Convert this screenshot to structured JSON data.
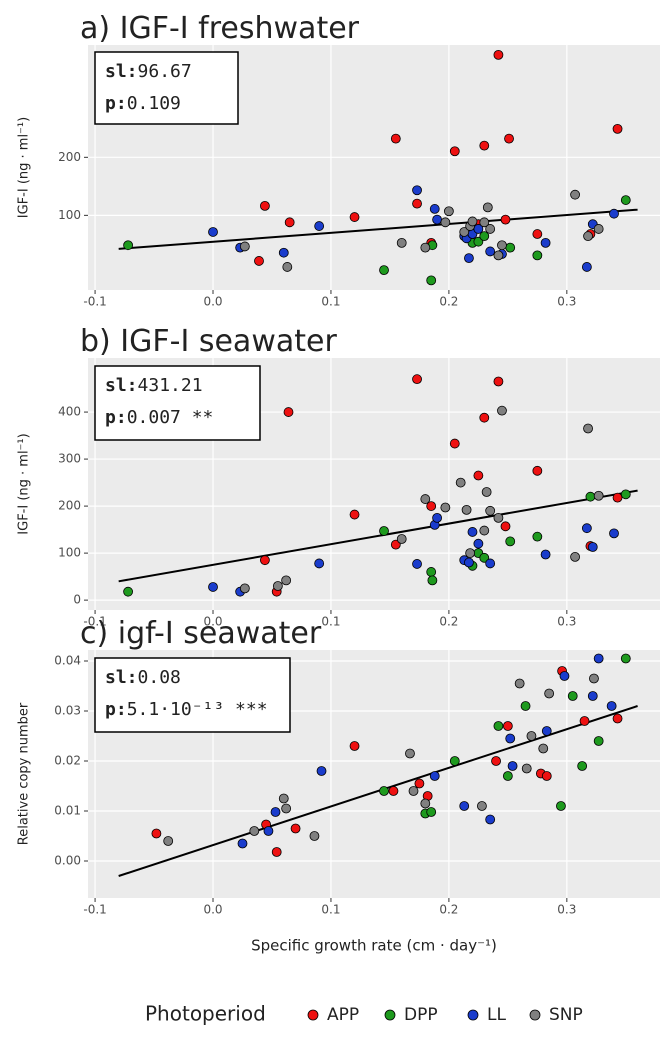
{
  "legend_title": "Photoperiod",
  "chart_data": [
    {
      "type": "scatter",
      "title": "a) IGF-I freshwater",
      "y_label": "IGF-I (ng · ml⁻¹)",
      "annotation": [
        "sl:96.67",
        "p:0.109"
      ],
      "log_y": true,
      "xlim": [
        -0.106,
        0.379
      ],
      "xticks": [
        -0.1,
        {
          "value": 0,
          "label": "0.0"
        },
        0.1,
        0.2,
        0.3
      ],
      "ylim": [
        41,
        765
      ],
      "yticks": [
        100,
        200
      ],
      "series": [
        {
          "name": "APP",
          "color": "#ee1111",
          "x": [
            0.044,
            0.039,
            0.065,
            0.12,
            0.155,
            0.173,
            0.185,
            0.205,
            0.225,
            0.23,
            0.242,
            0.248,
            0.251,
            0.275,
            0.32,
            0.343
          ],
          "y": [
            112,
            58,
            92,
            98,
            250,
            115,
            72,
            215,
            90,
            230,
            680,
            95,
            250,
            80,
            80,
            281
          ]
        },
        {
          "name": "DPP",
          "color": "#1e9a1e",
          "x": [
            -0.072,
            0.145,
            0.185,
            0.186,
            0.22,
            0.225,
            0.23,
            0.252,
            0.275,
            0.35
          ],
          "y": [
            70,
            52,
            46,
            70,
            72,
            73,
            78,
            68,
            62,
            120
          ]
        },
        {
          "name": "LL",
          "color": "#1a3ccc",
          "x": [
            0.0,
            0.023,
            0.06,
            0.09,
            0.173,
            0.188,
            0.19,
            0.213,
            0.215,
            0.217,
            0.22,
            0.225,
            0.235,
            0.245,
            0.282,
            0.317,
            0.34,
            0.322
          ],
          "y": [
            82,
            68,
            64,
            88,
            135,
            108,
            95,
            78,
            76,
            60,
            80,
            85,
            65,
            63,
            72,
            54,
            102,
            90
          ]
        },
        {
          "name": "SNP",
          "color": "#808080",
          "x": [
            0.027,
            0.063,
            0.16,
            0.18,
            0.197,
            0.2,
            0.213,
            0.218,
            0.22,
            0.23,
            0.233,
            0.235,
            0.242,
            0.245,
            0.307,
            0.318,
            0.327
          ],
          "y": [
            69,
            54,
            72,
            68,
            92,
            105,
            82,
            88,
            93,
            92,
            110,
            85,
            62,
            70,
            128,
            78,
            85
          ]
        }
      ],
      "fit": {
        "x": [
          -0.08,
          0.36
        ],
        "y": [
          67,
          107
        ]
      }
    },
    {
      "type": "scatter",
      "title": "b) IGF-I seawater",
      "y_label": "IGF-I (ng · ml⁻¹)",
      "annotation": [
        "sl:431.21",
        "p:0.007 **"
      ],
      "log_y": false,
      "xlim": [
        -0.106,
        0.379
      ],
      "xticks": [
        -0.1,
        {
          "value": 0,
          "label": "0.0"
        },
        0.1,
        0.2,
        0.3
      ],
      "ylim": [
        -21,
        515
      ],
      "yticks": [
        0,
        100,
        200,
        300,
        400
      ],
      "series": [
        {
          "name": "APP",
          "color": "#ee1111",
          "x": [
            0.044,
            0.064,
            0.054,
            0.12,
            0.155,
            0.173,
            0.185,
            0.205,
            0.225,
            0.23,
            0.242,
            0.248,
            0.275,
            0.32,
            0.343
          ],
          "y": [
            85,
            400,
            18,
            182,
            118,
            470,
            200,
            333,
            265,
            388,
            465,
            157,
            275,
            115,
            218
          ]
        },
        {
          "name": "DPP",
          "color": "#1e9a1e",
          "x": [
            -0.072,
            0.145,
            0.185,
            0.186,
            0.22,
            0.225,
            0.23,
            0.252,
            0.275,
            0.32,
            0.35
          ],
          "y": [
            18,
            147,
            60,
            42,
            73,
            100,
            90,
            125,
            135,
            220,
            225
          ]
        },
        {
          "name": "LL",
          "color": "#1a3ccc",
          "x": [
            0.0,
            0.023,
            0.09,
            0.173,
            0.188,
            0.19,
            0.213,
            0.217,
            0.22,
            0.225,
            0.235,
            0.282,
            0.317,
            0.322,
            0.34
          ],
          "y": [
            28,
            18,
            78,
            77,
            160,
            175,
            85,
            80,
            145,
            120,
            78,
            97,
            153,
            113,
            142
          ]
        },
        {
          "name": "SNP",
          "color": "#808080",
          "x": [
            0.027,
            0.055,
            0.062,
            0.16,
            0.18,
            0.197,
            0.21,
            0.215,
            0.218,
            0.23,
            0.232,
            0.235,
            0.242,
            0.245,
            0.307,
            0.318,
            0.327
          ],
          "y": [
            25,
            30,
            42,
            130,
            215,
            197,
            250,
            192,
            100,
            148,
            230,
            190,
            175,
            403,
            92,
            365,
            222
          ]
        }
      ],
      "fit": {
        "x": [
          -0.08,
          0.36
        ],
        "y": [
          40,
          233
        ]
      }
    },
    {
      "type": "scatter",
      "title": "c) igf-I seawater",
      "y_label": "Relative copy number",
      "annotation": [
        "sl:0.08",
        "p:5.1·10⁻¹³ ***"
      ],
      "x_label": "Specific growth rate (cm · day⁻¹)",
      "log_y": false,
      "xlim": [
        -0.106,
        0.379
      ],
      "xticks": [
        -0.1,
        {
          "value": 0,
          "label": "0.0"
        },
        0.1,
        0.2,
        0.3
      ],
      "ylim": [
        -0.0074,
        0.0422
      ],
      "yticks": [
        {
          "value": 0,
          "label": "0.00"
        },
        0.01,
        0.02,
        0.03,
        0.04
      ],
      "series": [
        {
          "name": "APP",
          "color": "#ee1111",
          "x": [
            -0.048,
            0.045,
            0.054,
            0.07,
            0.12,
            0.153,
            0.175,
            0.182,
            0.24,
            0.25,
            0.278,
            0.283,
            0.296,
            0.315,
            0.343
          ],
          "y": [
            0.0055,
            0.0073,
            0.0018,
            0.0065,
            0.023,
            0.014,
            0.0155,
            0.013,
            0.02,
            0.027,
            0.0175,
            0.017,
            0.038,
            0.028,
            0.0285
          ]
        },
        {
          "name": "DPP",
          "color": "#1e9a1e",
          "x": [
            0.145,
            0.18,
            0.185,
            0.205,
            0.242,
            0.25,
            0.265,
            0.295,
            0.305,
            0.313,
            0.327,
            0.35
          ],
          "y": [
            0.014,
            0.0095,
            0.0098,
            0.02,
            0.027,
            0.017,
            0.031,
            0.011,
            0.033,
            0.019,
            0.024,
            0.0405
          ]
        },
        {
          "name": "LL",
          "color": "#1a3ccc",
          "x": [
            0.025,
            0.047,
            0.053,
            0.092,
            0.188,
            0.213,
            0.235,
            0.252,
            0.254,
            0.283,
            0.298,
            0.322,
            0.327,
            0.338
          ],
          "y": [
            0.0035,
            0.006,
            0.0098,
            0.018,
            0.017,
            0.011,
            0.0083,
            0.0245,
            0.019,
            0.026,
            0.037,
            0.033,
            0.0405,
            0.031
          ]
        },
        {
          "name": "SNP",
          "color": "#808080",
          "x": [
            -0.038,
            0.035,
            0.06,
            0.062,
            0.086,
            0.167,
            0.17,
            0.18,
            0.228,
            0.26,
            0.266,
            0.27,
            0.28,
            0.285,
            0.323
          ],
          "y": [
            0.004,
            0.006,
            0.0125,
            0.0105,
            0.005,
            0.0215,
            0.014,
            0.0115,
            0.011,
            0.0355,
            0.0185,
            0.025,
            0.0225,
            0.0335,
            0.0365
          ]
        }
      ],
      "fit": {
        "x": [
          -0.08,
          0.36
        ],
        "y": [
          -0.003,
          0.031
        ]
      }
    }
  ]
}
